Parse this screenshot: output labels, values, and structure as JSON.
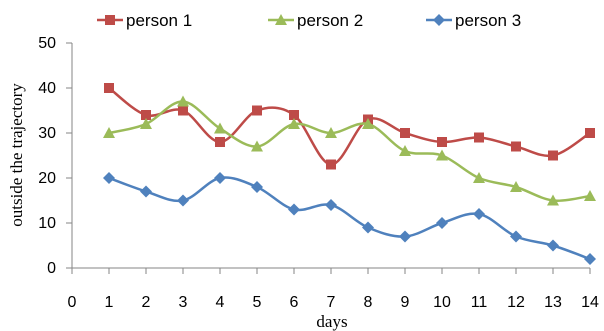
{
  "chart_data": {
    "type": "line",
    "x": [
      1,
      2,
      3,
      4,
      5,
      6,
      7,
      8,
      9,
      10,
      11,
      12,
      13,
      14
    ],
    "xlim": [
      0,
      14
    ],
    "x_ticks": [
      0,
      1,
      2,
      3,
      4,
      5,
      6,
      7,
      8,
      9,
      10,
      11,
      12,
      13,
      14
    ],
    "ylim": [
      0,
      50
    ],
    "y_ticks": [
      0,
      10,
      20,
      30,
      40,
      50
    ],
    "xlabel": "days",
    "ylabel": "outside the trajectory",
    "title": "",
    "grid": false,
    "smooth": true,
    "legend_position": "top",
    "series": [
      {
        "name": "person 1",
        "color": "#be4b48",
        "marker": "square",
        "values": [
          40,
          34,
          35,
          28,
          35,
          34,
          23,
          33,
          30,
          28,
          29,
          27,
          25,
          30
        ]
      },
      {
        "name": "person 2",
        "color": "#9bbb59",
        "marker": "triangle",
        "values": [
          30,
          32,
          37,
          31,
          27,
          32,
          30,
          32,
          26,
          25,
          20,
          18,
          15,
          16
        ]
      },
      {
        "name": "person 3",
        "color": "#4f81bd",
        "marker": "diamond",
        "values": [
          20,
          17,
          15,
          20,
          18,
          13,
          14,
          9,
          7,
          10,
          12,
          7,
          5,
          2
        ]
      }
    ]
  }
}
